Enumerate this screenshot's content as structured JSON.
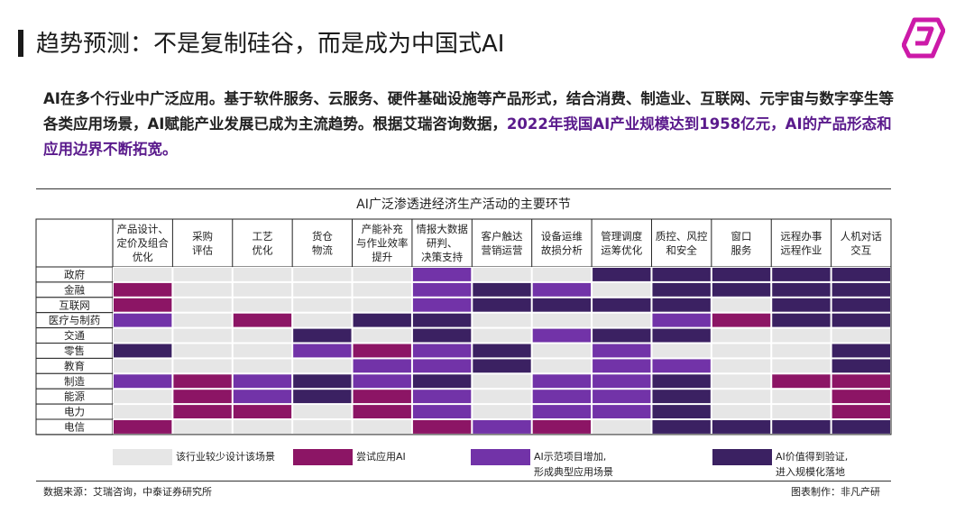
{
  "slide": {
    "title": "趋势预测：不是复制硅谷，而是成为中国式AI",
    "intro_plain": "AI在多个行业中广泛应用。基于软件服务、云服务、硬件基础设施等产品形式，结合消费、制造业、互联网、元宇宙与数字孪生等各类应用场景，AI赋能产业发展已成为主流趋势。根据艾瑞咨询数据，",
    "intro_highlight": "2022年我国AI产业规模达到1958亿元，AI的产品形态和应用边界不断拓宽。",
    "source_note": "数据来源：艾瑞咨询，中泰证券研究所",
    "credit": "图表制作：非凡产研"
  },
  "colors": {
    "level0": "#e6e6e6",
    "level1": "#8c1565",
    "level2": "#7233a8",
    "level3": "#3b2162",
    "highlight_text": "#5a1a8c",
    "logo": "#cc1aa8"
  },
  "chart_data": {
    "type": "heatmap",
    "title": "AI广泛渗透进经济生产活动的主要环节",
    "columns": [
      [
        "产品设计、",
        "定价及组合",
        "优化"
      ],
      [
        "采购",
        "评估"
      ],
      [
        "工艺",
        "优化"
      ],
      [
        "货仓",
        "物流"
      ],
      [
        "产能补充",
        "与作业效率",
        "提升"
      ],
      [
        "情报大数据",
        "研判、",
        "决策支持"
      ],
      [
        "客户触达",
        "营销运营"
      ],
      [
        "设备运维",
        "故损分析"
      ],
      [
        "管理调度",
        "运筹优化"
      ],
      [
        "质控、风控",
        "和安全"
      ],
      [
        "窗口",
        "服务"
      ],
      [
        "远程办事",
        "远程作业"
      ],
      [
        "人机对话",
        "交互"
      ]
    ],
    "rows": [
      "政府",
      "金融",
      "互联网",
      "医疗与制药",
      "交通",
      "零售",
      "教育",
      "制造",
      "能源",
      "电力",
      "电信"
    ],
    "legend": [
      {
        "level": 0,
        "label": [
          "该行业较少设计该场景"
        ]
      },
      {
        "level": 1,
        "label": [
          "尝试应用AI"
        ]
      },
      {
        "level": 2,
        "label": [
          "AI示范项目增加,",
          "形成典型应用场景"
        ]
      },
      {
        "level": 3,
        "label": [
          "AI价值得到验证,",
          "进入规模化落地"
        ]
      }
    ],
    "values": [
      [
        0,
        0,
        0,
        0,
        0,
        2,
        0,
        0,
        3,
        3,
        3,
        3,
        3
      ],
      [
        1,
        0,
        0,
        0,
        0,
        2,
        3,
        2,
        0,
        3,
        3,
        3,
        3
      ],
      [
        1,
        0,
        0,
        0,
        0,
        2,
        3,
        3,
        3,
        3,
        0,
        3,
        3
      ],
      [
        2,
        0,
        1,
        0,
        3,
        3,
        0,
        0,
        0,
        2,
        1,
        3,
        3
      ],
      [
        0,
        0,
        0,
        3,
        0,
        3,
        0,
        2,
        3,
        3,
        0,
        0,
        0
      ],
      [
        3,
        0,
        0,
        2,
        1,
        2,
        3,
        0,
        2,
        0,
        0,
        0,
        3
      ],
      [
        0,
        0,
        0,
        0,
        2,
        2,
        3,
        0,
        2,
        2,
        0,
        0,
        3
      ],
      [
        2,
        1,
        2,
        3,
        2,
        3,
        0,
        2,
        2,
        3,
        0,
        1,
        1
      ],
      [
        0,
        1,
        2,
        3,
        1,
        2,
        0,
        2,
        2,
        3,
        0,
        0,
        1
      ],
      [
        0,
        1,
        1,
        0,
        1,
        2,
        0,
        2,
        2,
        3,
        0,
        0,
        1
      ],
      [
        1,
        0,
        0,
        0,
        0,
        1,
        2,
        1,
        0,
        3,
        3,
        3,
        3
      ]
    ]
  }
}
